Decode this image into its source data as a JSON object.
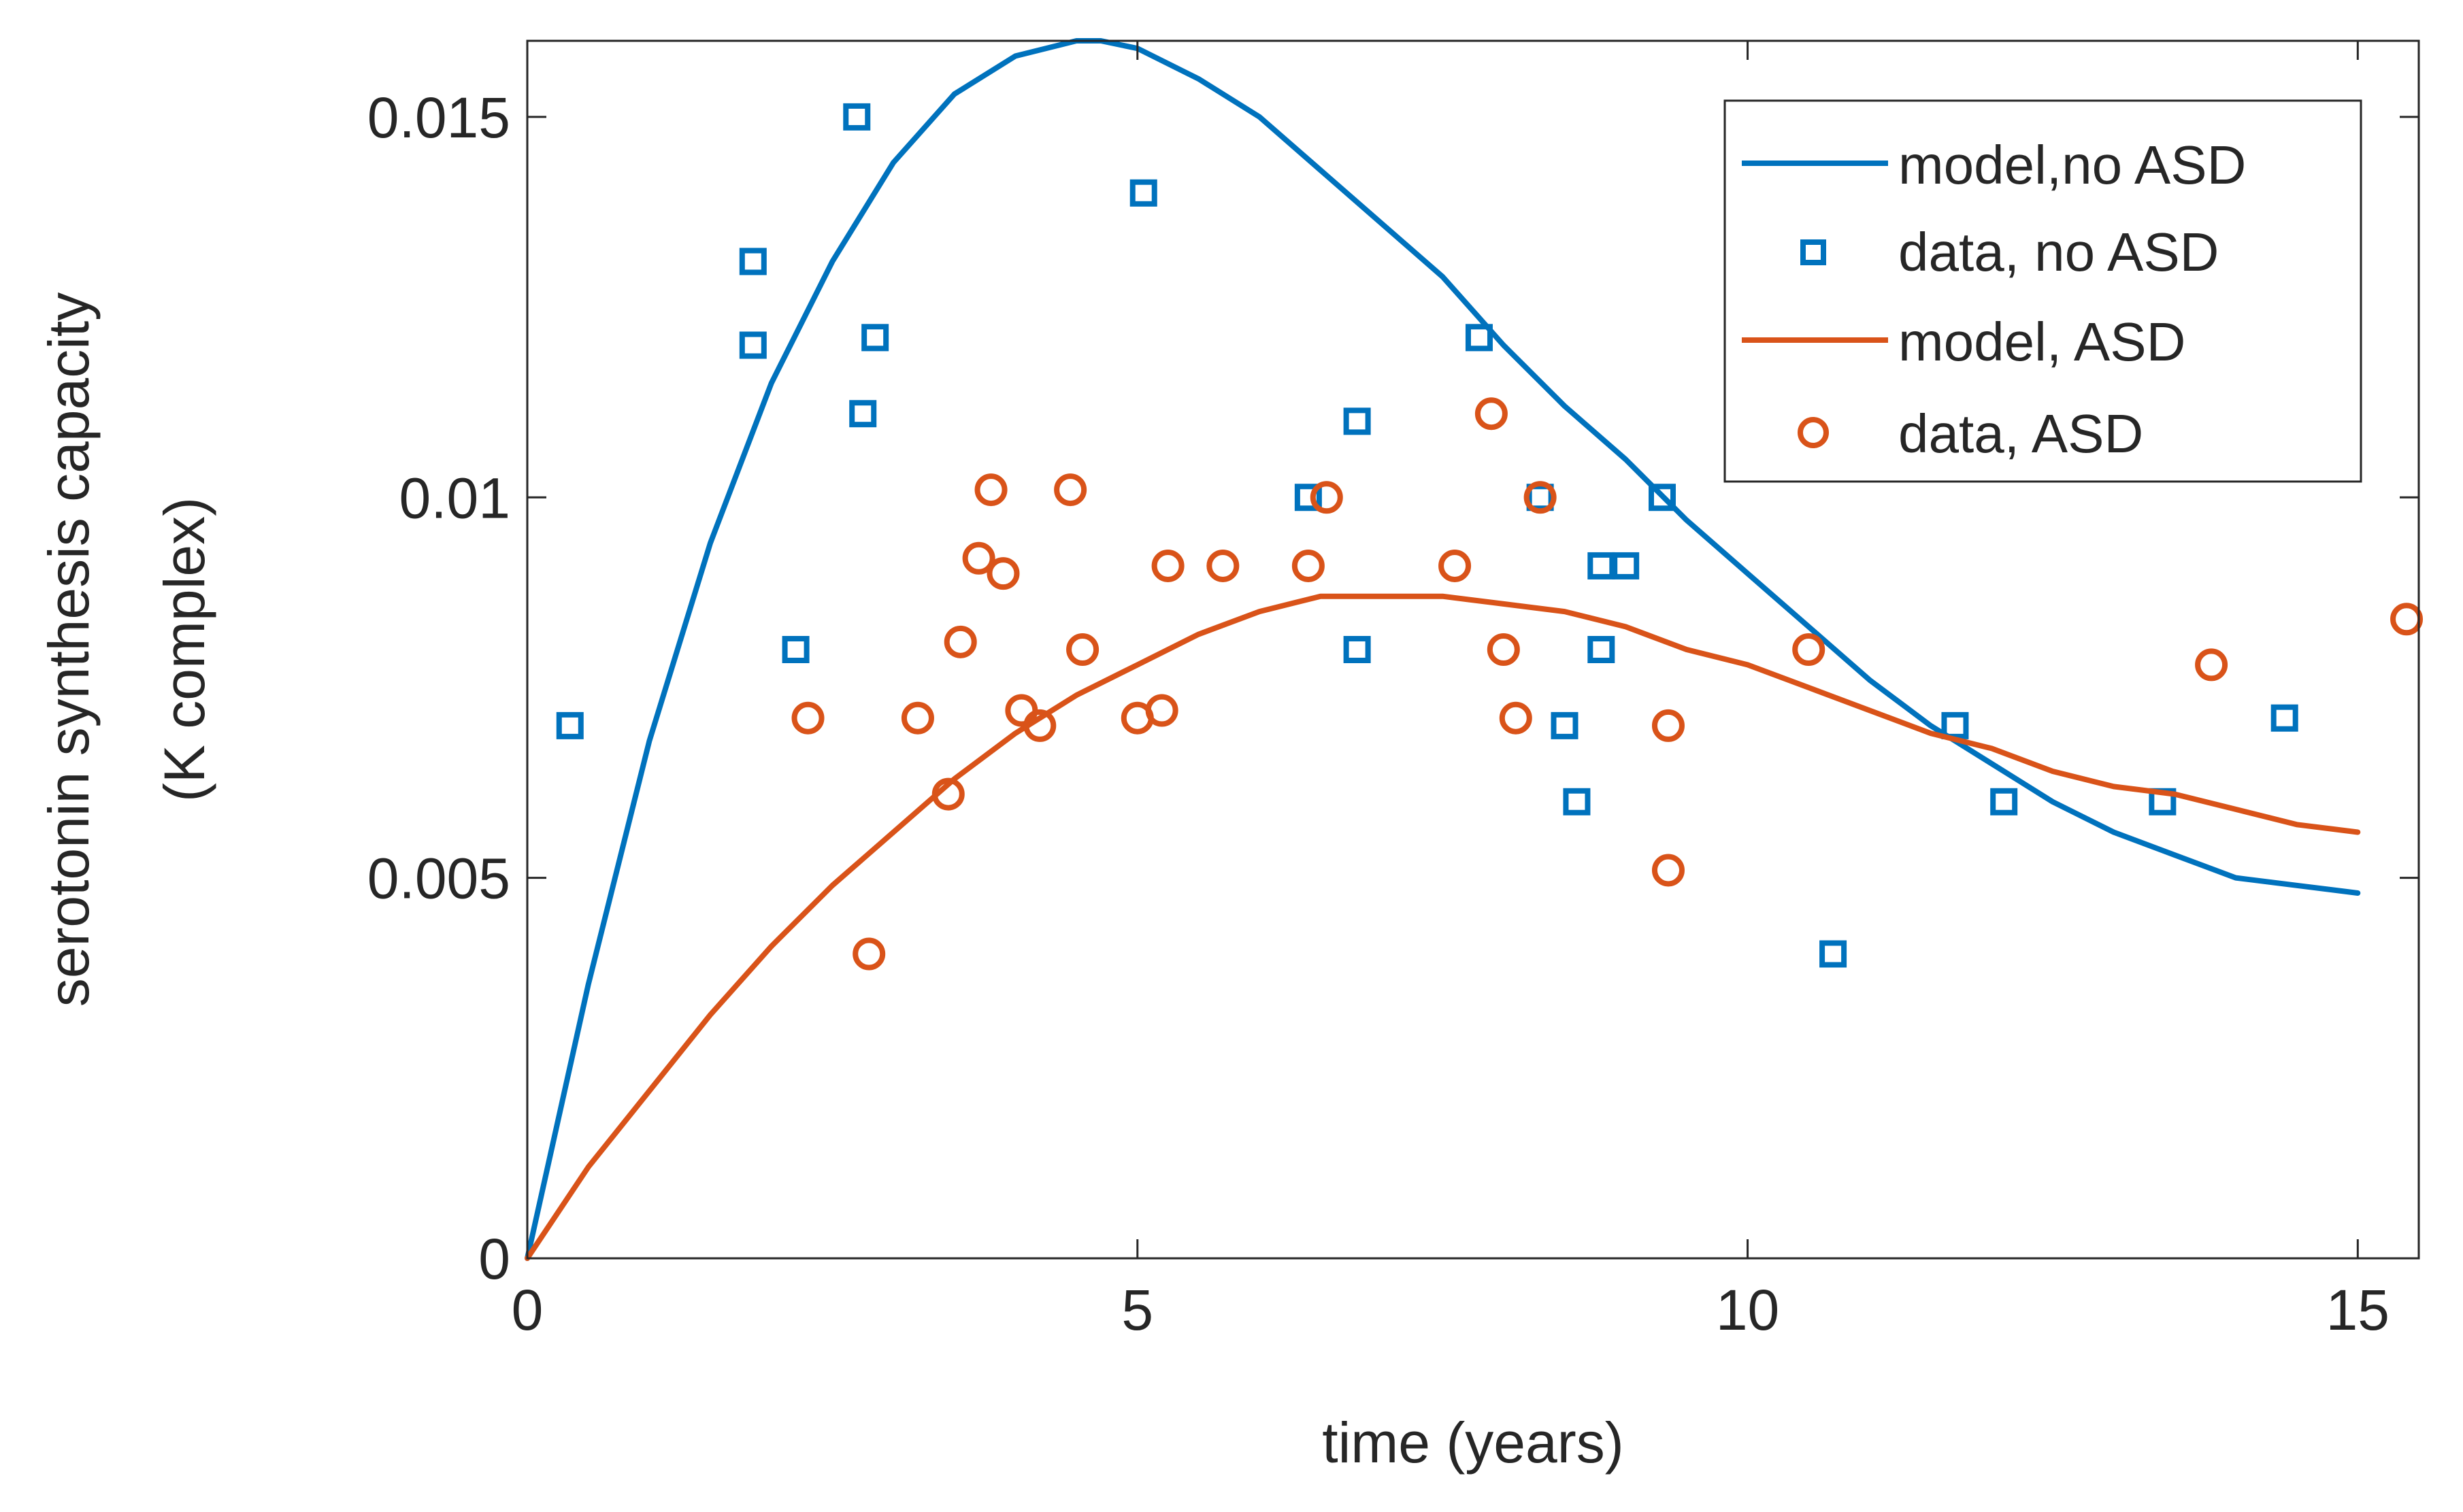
{
  "chart_data": {
    "type": "line",
    "title": "",
    "xlabel": "time (years)",
    "ylabel_lines": [
      "serotonin synthesis capacity",
      "(K complex)"
    ],
    "xlim": [
      0,
      15.5
    ],
    "ylim": [
      0,
      0.016
    ],
    "xticks": [
      0,
      5,
      10,
      15
    ],
    "xtick_labels": [
      "0",
      "5",
      "10",
      "15"
    ],
    "yticks": [
      0,
      0.005,
      0.01,
      0.015
    ],
    "ytick_labels": [
      "0",
      "0.005",
      "0.01",
      "0.015"
    ],
    "grid": false,
    "legend_position": "top-right",
    "colors": {
      "no_asd": "#0072BD",
      "asd": "#D95319",
      "axis": "#262626"
    },
    "series": [
      {
        "name": "model,no ASD",
        "kind": "line",
        "color": "#0072BD",
        "x": [
          0,
          0.5,
          1,
          1.5,
          2,
          2.5,
          3,
          3.5,
          4,
          4.5,
          4.7,
          5,
          5.5,
          6,
          6.5,
          7,
          7.5,
          8,
          8.5,
          9,
          9.5,
          10,
          10.5,
          11,
          11.5,
          12,
          12.5,
          13,
          13.5,
          14,
          14.5,
          15
        ],
        "y": [
          0,
          0.0036,
          0.0068,
          0.0094,
          0.0115,
          0.0131,
          0.0144,
          0.0153,
          0.0158,
          0.016,
          0.016,
          0.0159,
          0.0155,
          0.015,
          0.0143,
          0.0136,
          0.0129,
          0.012,
          0.0112,
          0.0105,
          0.0097,
          0.009,
          0.0083,
          0.0076,
          0.007,
          0.0065,
          0.006,
          0.0056,
          0.0053,
          0.005,
          0.0049,
          0.0048
        ]
      },
      {
        "name": "data, no ASD",
        "kind": "scatter",
        "marker": "square",
        "color": "#0072BD",
        "x": [
          0.35,
          1.85,
          1.85,
          2.2,
          2.7,
          2.75,
          2.85,
          5.05,
          6.4,
          6.8,
          6.8,
          7.8,
          8.3,
          8.5,
          8.6,
          8.8,
          8.8,
          9.0,
          9.3,
          10.7,
          11.7,
          12.1,
          13.4,
          14.4
        ],
        "y": [
          0.007,
          0.0131,
          0.012,
          0.008,
          0.015,
          0.0111,
          0.0121,
          0.014,
          0.01,
          0.011,
          0.008,
          0.0121,
          0.01,
          0.007,
          0.006,
          0.0091,
          0.008,
          0.0091,
          0.01,
          0.004,
          0.007,
          0.006,
          0.006,
          0.0071
        ]
      },
      {
        "name": "model, ASD",
        "kind": "line",
        "color": "#D95319",
        "x": [
          0,
          0.5,
          1,
          1.5,
          2,
          2.5,
          3,
          3.5,
          4,
          4.5,
          5,
          5.5,
          6,
          6.5,
          7,
          7.5,
          8,
          8.5,
          9,
          9.5,
          10,
          10.5,
          11,
          11.5,
          12,
          12.5,
          13,
          13.5,
          14,
          14.5,
          15
        ],
        "y": [
          0,
          0.0012,
          0.0022,
          0.0032,
          0.0041,
          0.0049,
          0.0056,
          0.0063,
          0.0069,
          0.0074,
          0.0078,
          0.0082,
          0.0085,
          0.0087,
          0.0087,
          0.0087,
          0.0086,
          0.0085,
          0.0083,
          0.008,
          0.0078,
          0.0075,
          0.0072,
          0.0069,
          0.0067,
          0.0064,
          0.0062,
          0.0061,
          0.0059,
          0.0057,
          0.0056
        ]
      },
      {
        "name": "data, ASD",
        "kind": "scatter",
        "marker": "circle",
        "color": "#D95319",
        "x": [
          2.3,
          2.8,
          3.2,
          3.45,
          3.55,
          3.7,
          3.8,
          3.9,
          4.05,
          4.2,
          4.45,
          4.55,
          5.0,
          5.2,
          5.25,
          5.7,
          6.4,
          6.55,
          7.6,
          7.9,
          8.0,
          8.1,
          8.3,
          9.35,
          9.35,
          10.5,
          13.8,
          15.4
        ],
        "y": [
          0.0071,
          0.004,
          0.0071,
          0.0061,
          0.0081,
          0.0092,
          0.0101,
          0.009,
          0.0072,
          0.007,
          0.0101,
          0.008,
          0.0071,
          0.0072,
          0.0091,
          0.0091,
          0.0091,
          0.01,
          0.0091,
          0.0111,
          0.008,
          0.0071,
          0.01,
          0.007,
          0.0051,
          0.008,
          0.0078,
          0.0084
        ]
      }
    ]
  }
}
